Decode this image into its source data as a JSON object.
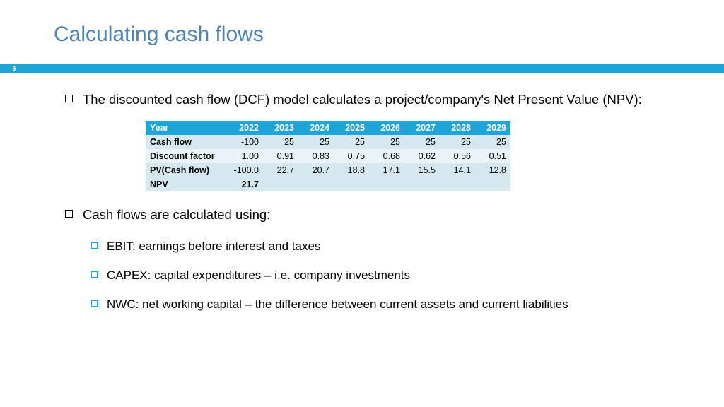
{
  "slide": {
    "title": "Calculating cash flows",
    "page_number": "5",
    "title_color": "#4a82b4",
    "accent_color": "#1ca5d6",
    "background_color": "#ffffff",
    "text_color": "#000000"
  },
  "bullets": {
    "b1": "The discounted cash flow (DCF) model calculates a project/company's Net Present Value (NPV):",
    "b2": "Cash flows are calculated using:",
    "b2a": "EBIT: earnings before interest and taxes",
    "b2b": "CAPEX: capital expenditures – i.e. company investments",
    "b2c": "NWC: net working capital – the difference between current assets and current liabilities"
  },
  "table": {
    "type": "table",
    "header_bg": "#1ca5d6",
    "header_text_color": "#ffffff",
    "row_bg_even": "#d6e8ef",
    "row_bg_odd": "#eaf3f8",
    "npv_row_bg": "#d6e8ef",
    "columns": [
      "Year",
      "2022",
      "2023",
      "2024",
      "2025",
      "2026",
      "2027",
      "2028",
      "2029"
    ],
    "rows": [
      {
        "label": "Cash flow",
        "cells": [
          "-100",
          "25",
          "25",
          "25",
          "25",
          "25",
          "25",
          "25"
        ]
      },
      {
        "label": "Discount factor",
        "cells": [
          "1.00",
          "0.91",
          "0.83",
          "0.75",
          "0.68",
          "0.62",
          "0.56",
          "0.51"
        ]
      },
      {
        "label": "PV(Cash flow)",
        "cells": [
          "-100.0",
          "22.7",
          "20.7",
          "18.8",
          "17.1",
          "15.5",
          "14.1",
          "12.8"
        ]
      },
      {
        "label": "NPV",
        "cells": [
          "21.7",
          "",
          "",
          "",
          "",
          "",
          "",
          ""
        ]
      }
    ],
    "font_size": 12.5,
    "col_width_first": 116,
    "col_width_rest": 50
  }
}
